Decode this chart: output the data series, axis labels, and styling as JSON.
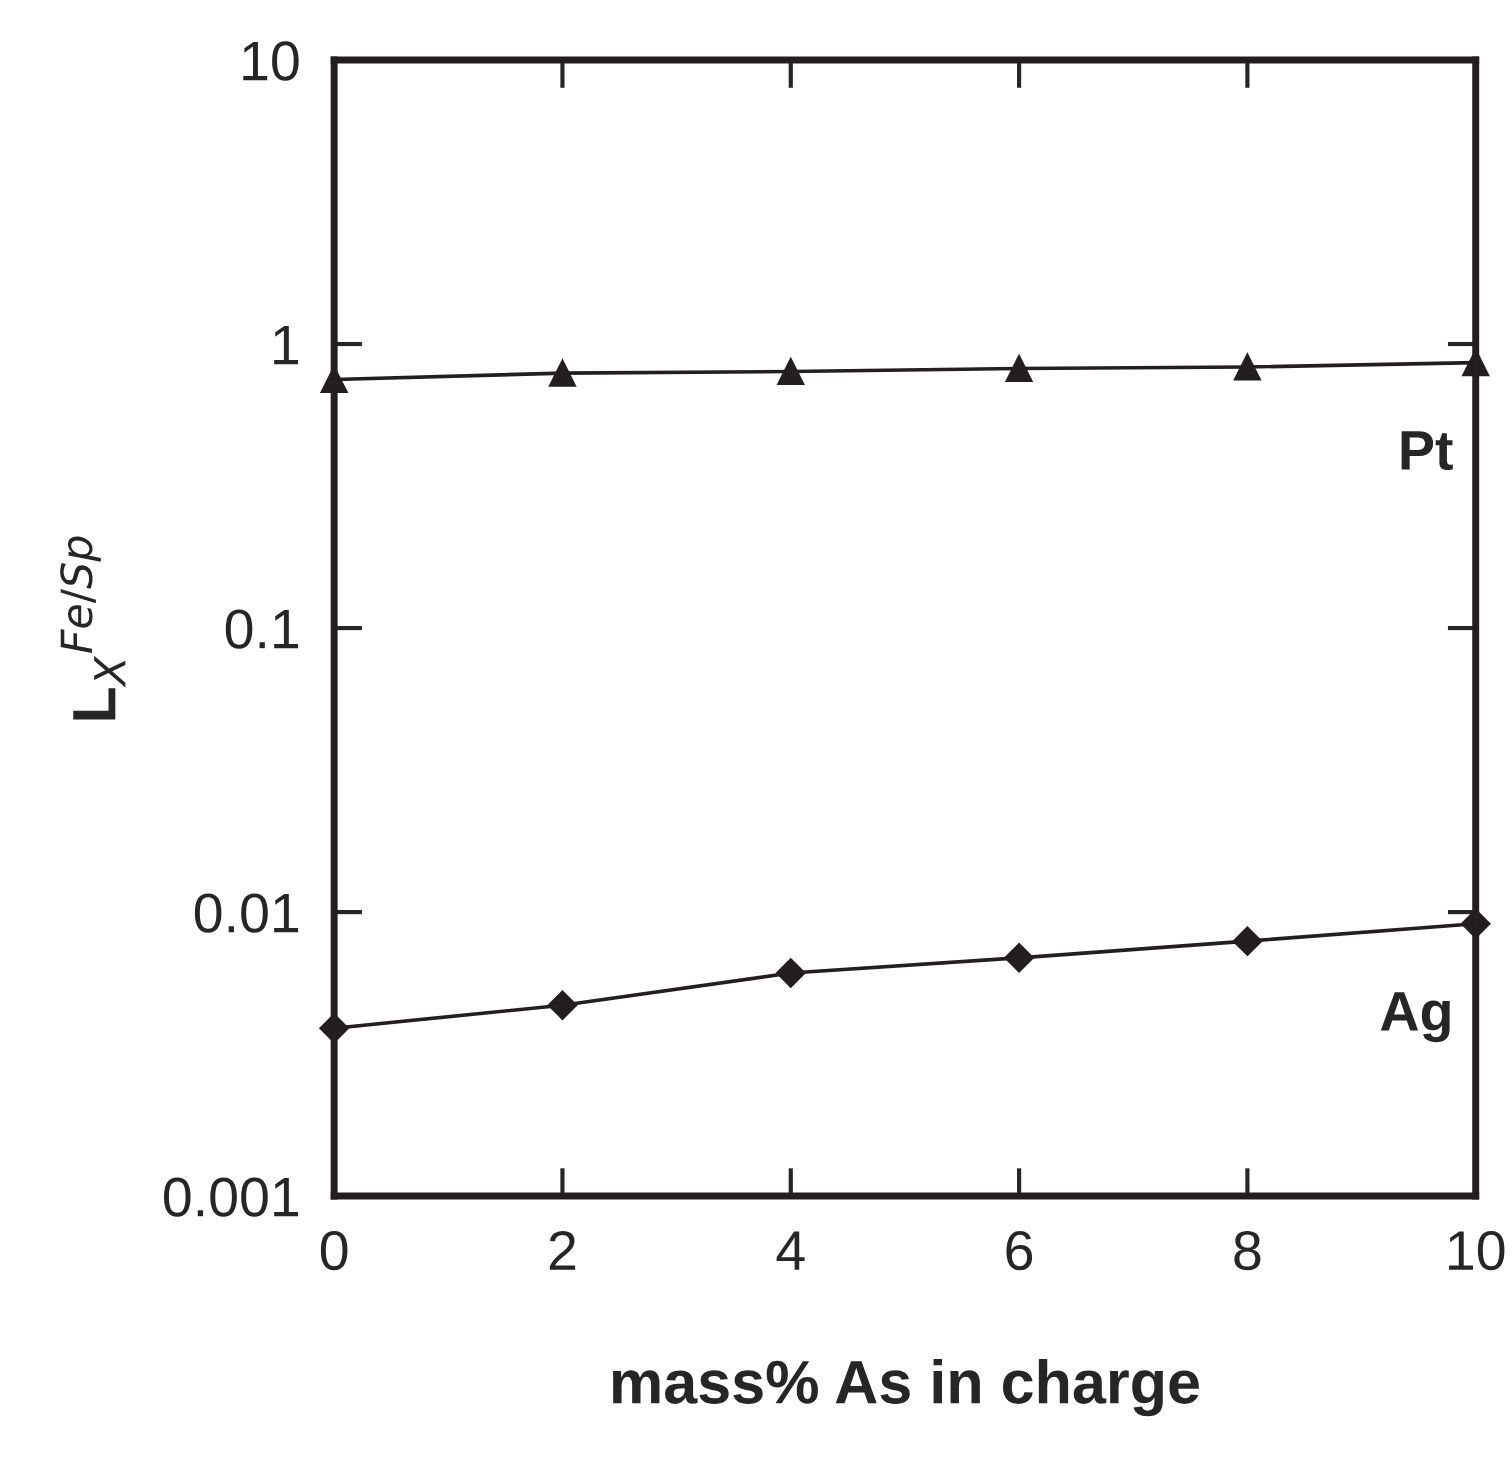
{
  "chart_data": {
    "type": "line",
    "xlabel": "mass% As in charge",
    "ylabel": "L$_{X}$$^{Fe/Sp}$",
    "x": [
      0,
      2,
      4,
      6,
      8,
      10
    ],
    "log": "y",
    "xlim": [
      0,
      10
    ],
    "xticks": [
      0,
      2,
      4,
      6,
      8,
      10
    ],
    "ylim": [
      0.001,
      10
    ],
    "yticks": [
      0.001,
      0.01,
      0.1,
      1,
      10
    ],
    "grid": false,
    "legend": false,
    "series": [
      {
        "name": "Pt",
        "color": "#231f20",
        "marker": "triangle",
        "values": [
          0.75,
          0.79,
          0.8,
          0.82,
          0.83,
          0.86
        ]
      },
      {
        "name": "Ag",
        "color": "#231f20",
        "marker": "diamond",
        "values": [
          0.0039,
          0.0047,
          0.0061,
          0.0069,
          0.0079,
          0.0091
        ]
      }
    ]
  }
}
